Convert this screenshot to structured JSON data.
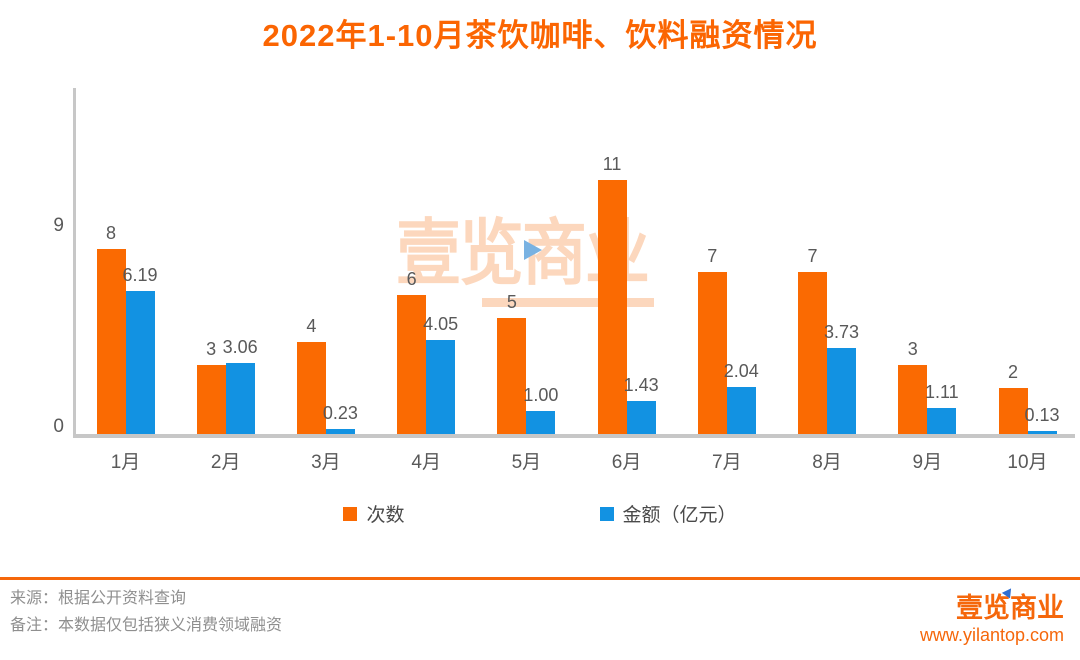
{
  "title": "2022年1-10月茶饮咖啡、饮料融资情况",
  "watermark": {
    "text": "壹览商业"
  },
  "chart_data": {
    "type": "bar",
    "title": "2022年1-10月茶饮咖啡、饮料融资情况",
    "categories": [
      "1月",
      "2月",
      "3月",
      "4月",
      "5月",
      "6月",
      "7月",
      "8月",
      "9月",
      "10月"
    ],
    "series": [
      {
        "name": "次数",
        "color": "#fa6a02",
        "values": [
          8,
          3,
          4,
          6,
          5,
          11,
          7,
          7,
          3,
          2
        ],
        "labels": [
          "8",
          "3",
          "4",
          "6",
          "5",
          "11",
          "7",
          "7",
          "3",
          "2"
        ]
      },
      {
        "name": "金额（亿元）",
        "color": "#1292e2",
        "values": [
          6.19,
          3.06,
          0.23,
          4.05,
          1.0,
          1.43,
          2.04,
          3.73,
          1.11,
          0.13
        ],
        "labels": [
          "6.19",
          "3.06",
          "0.23",
          "4.05",
          "1.00",
          "1.43",
          "2.04",
          "3.73",
          "1.11",
          "0.13"
        ]
      }
    ],
    "xlabel": "",
    "ylabel": "",
    "ylim": [
      0,
      9
    ],
    "yticks": [
      "0",
      "9"
    ],
    "grid": false,
    "legend_position": "bottom"
  },
  "footer": {
    "source_line": "来源：根据公开资料查询",
    "note_line": "备注：本数据仅包括狭义消费领域融资",
    "logo_text": "壹览商业",
    "logo_url": "www.yilantop.com"
  }
}
